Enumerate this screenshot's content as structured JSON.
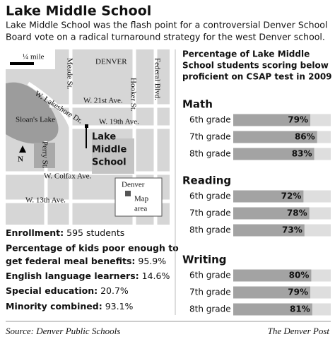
{
  "header": {
    "title": "Lake Middle School",
    "subtitle": [
      "Lake Middle School was the flash point for a controversial Denver School",
      "Board vote on a radical turnaround strategy for the west Denver school."
    ]
  },
  "map": {
    "scale": "¼ mile",
    "city": "DENVER",
    "meade": "Meade St.",
    "federal": "Federal Blvd.",
    "w21": "W. 21st Ave.",
    "lakeshore": "W. Lakeshore Dr.",
    "lake": "Sloan's Lake",
    "w19": "W. 19th Ave.",
    "hooker": "Hooker St.",
    "perry": "Perry St.",
    "north": "N",
    "school": [
      "Lake",
      "Middle",
      "School"
    ],
    "colfax": "W. Colfax Ave.",
    "w13": "W. 13th Ave.",
    "inset": [
      "Denver",
      "Map",
      "area"
    ]
  },
  "stats": [
    {
      "label": "Enrollment:",
      "value": "595 students"
    },
    {
      "label": "Percentage of kids poor enough to",
      "label2": "get federal meal benefits:",
      "value": "95.9%"
    },
    {
      "label": "English language learners:",
      "value": "14.6%"
    },
    {
      "label": "Special education:",
      "value": "20.7%"
    },
    {
      "label": "Minority combined:",
      "value": "93.1%"
    }
  ],
  "panel_title": [
    "Percentage of Lake Middle",
    "School students scoring below",
    "proficient on CSAP test in 2009"
  ],
  "chart_data": [
    {
      "type": "bar",
      "title": "Math",
      "categories": [
        "6th grade",
        "7th grade",
        "8th grade"
      ],
      "values": [
        79,
        86,
        83
      ],
      "value_labels": [
        "79%",
        "86%",
        "83%"
      ],
      "xlim": [
        0,
        100
      ],
      "color": "#a3a3a3",
      "track_color": "#dedede"
    },
    {
      "type": "bar",
      "title": "Reading",
      "categories": [
        "6th grade",
        "7th grade",
        "8th grade"
      ],
      "values": [
        72,
        78,
        73
      ],
      "value_labels": [
        "72%",
        "78%",
        "73%"
      ],
      "xlim": [
        0,
        100
      ],
      "color": "#a3a3a3",
      "track_color": "#dedede"
    },
    {
      "type": "bar",
      "title": "Writing",
      "categories": [
        "6th grade",
        "7th grade",
        "8th grade"
      ],
      "values": [
        80,
        79,
        81
      ],
      "value_labels": [
        "80%",
        "79%",
        "81%"
      ],
      "xlim": [
        0,
        100
      ],
      "color": "#a3a3a3",
      "track_color": "#dedede"
    }
  ],
  "footer": {
    "source": "Source: Denver Public Schools",
    "credit": "The Denver Post"
  }
}
